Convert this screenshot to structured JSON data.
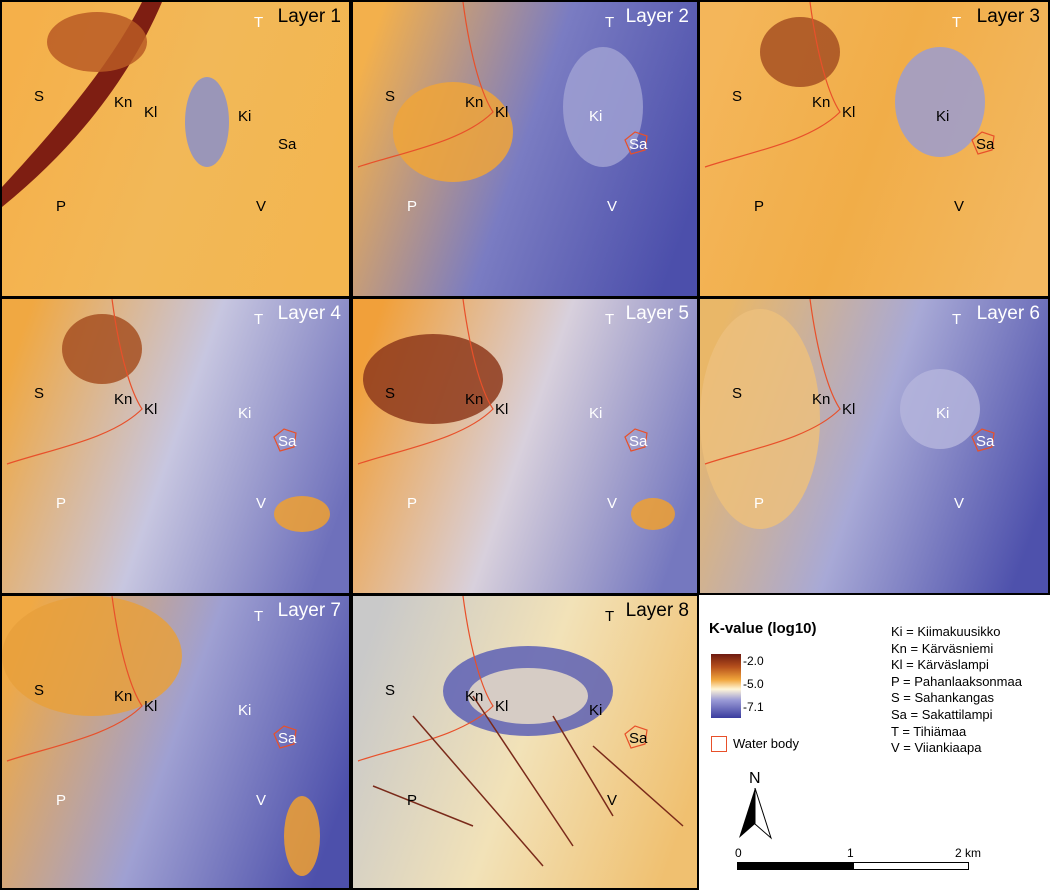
{
  "panels": [
    {
      "title": "Layer 1",
      "labels": [
        "T",
        "S",
        "Kn",
        "Kl",
        "Ki",
        "Sa",
        "P",
        "V"
      ]
    },
    {
      "title": "Layer 2",
      "labels": [
        "T",
        "S",
        "Kn",
        "Kl",
        "Ki",
        "Sa",
        "P",
        "V"
      ]
    },
    {
      "title": "Layer 3",
      "labels": [
        "T",
        "S",
        "Kn",
        "Kl",
        "Ki",
        "Sa",
        "P",
        "V"
      ]
    },
    {
      "title": "Layer 4",
      "labels": [
        "T",
        "S",
        "Kn",
        "Kl",
        "Ki",
        "Sa",
        "P",
        "V"
      ]
    },
    {
      "title": "Layer 5",
      "labels": [
        "T",
        "S",
        "Kn",
        "Kl",
        "Ki",
        "Sa",
        "P",
        "V"
      ]
    },
    {
      "title": "Layer 6",
      "labels": [
        "T",
        "S",
        "Kn",
        "Kl",
        "Ki",
        "Sa",
        "P",
        "V"
      ]
    },
    {
      "title": "Layer 7",
      "labels": [
        "T",
        "S",
        "Kn",
        "Kl",
        "Ki",
        "Sa",
        "P",
        "V"
      ]
    },
    {
      "title": "Layer 8",
      "labels": [
        "T",
        "S",
        "Kn",
        "Kl",
        "Ki",
        "Sa",
        "P",
        "V"
      ]
    }
  ],
  "legend": {
    "title": "K-value (log10)",
    "ticks": [
      "-2.0",
      "-5.0",
      "-7.1"
    ],
    "water": "Water body",
    "north": "N",
    "scale": [
      "0",
      "1",
      "2 km"
    ]
  },
  "abbreviations": [
    "Ki = Kiimakuusikko",
    "Kn = Kärväsniemi",
    "Kl = Kärväslampi",
    "P = Pahanlaaksonmaa",
    "S = Sahankangas",
    "Sa = Sakattilampi",
    "T = Tihiämaa",
    "V = Viiankiaapa"
  ]
}
